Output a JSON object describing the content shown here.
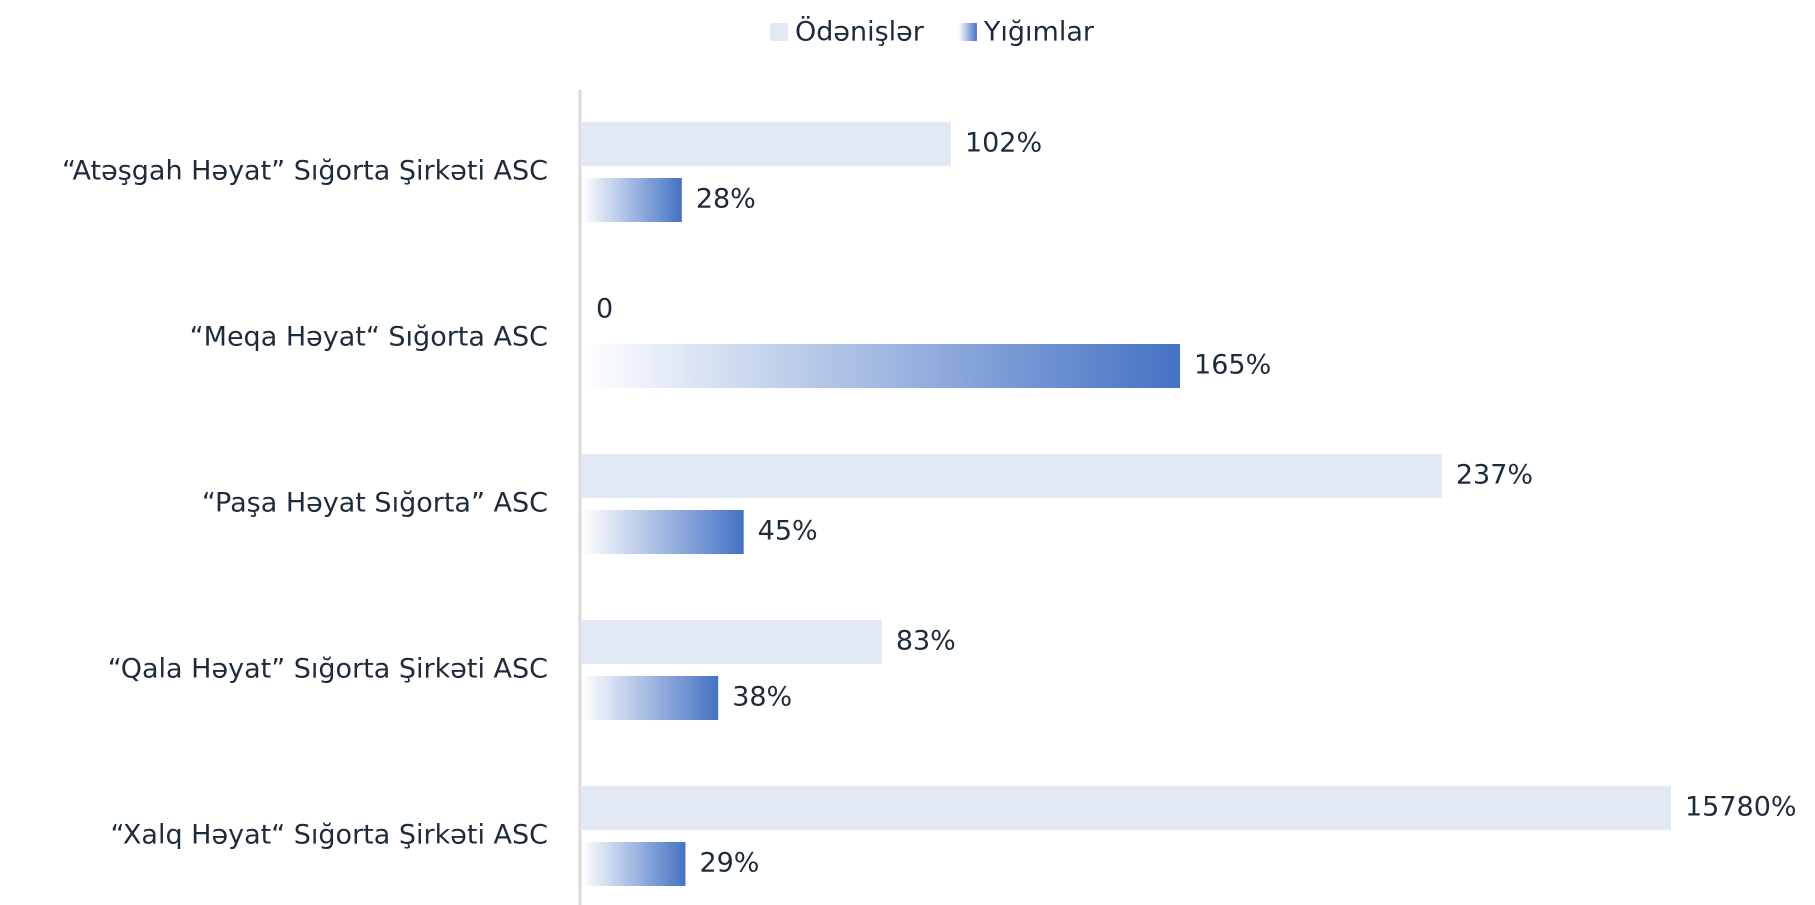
{
  "chart_data": {
    "type": "hbar",
    "categories": [
      "“Atəşgah Həyat” Sığorta Şirkəti ASC",
      "“Meqa Həyat“ Sığorta ASC",
      "“Paşa Həyat Sığorta” ASC",
      "“Qala Həyat” Sığorta Şirkəti ASC",
      "“Xalq Həyat“ Sığorta Şirkəti ASC"
    ],
    "series": [
      {
        "name": "Ödənişlər",
        "color": "#e3e8f5",
        "values": [
          102,
          0,
          237,
          83,
          15780
        ],
        "value_labels": [
          "102%",
          "0",
          "237%",
          "83%",
          "15780%"
        ]
      },
      {
        "name": "Yığımlar",
        "color": "#4472c4",
        "gradient": true,
        "values": [
          28,
          165,
          45,
          38,
          29
        ],
        "value_labels": [
          "28%",
          "165%",
          "45%",
          "38%",
          "29%"
        ]
      }
    ],
    "xlim": [
      0,
      300
    ],
    "clip": true,
    "legend": "top"
  }
}
